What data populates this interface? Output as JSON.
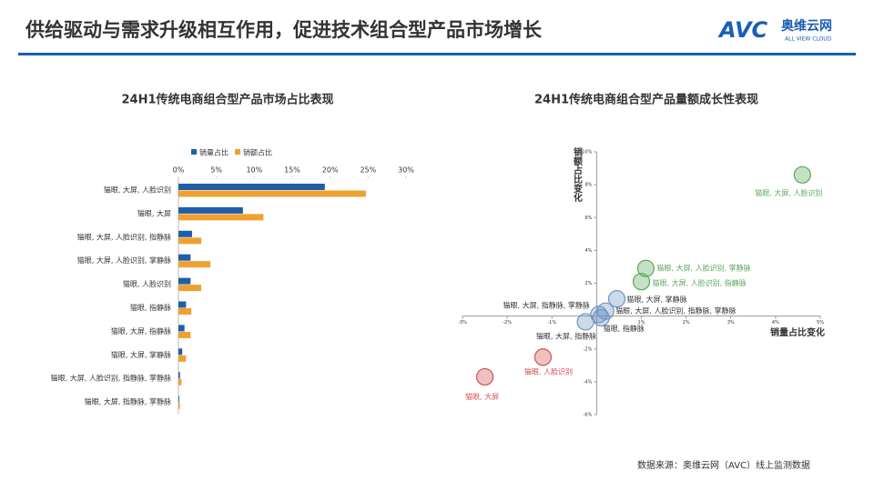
{
  "header": {
    "title": "供给驱动与需求升级相互作用，促进技术组合型产品市场增长",
    "logo_mark": "AVC",
    "logo_name": "奥维云网",
    "logo_sub": "ALL VIEW CLOUD"
  },
  "source": "数据来源：奥维云网（AVC）线上监测数据",
  "chart_data": [
    {
      "type": "bar",
      "orientation": "horizontal",
      "title": "24H1传统电商组合型产品市场占比表现",
      "categories": [
        "猫眼, 大屏, 人脸识别",
        "猫眼, 大屏",
        "猫眼, 大屏, 人脸识别, 指静脉",
        "猫眼, 大屏, 人脸识别, 掌静脉",
        "猫眼, 人脸识别",
        "猫眼, 指静脉",
        "猫眼, 大屏, 指静脉",
        "猫眼, 大屏, 掌静脉",
        "猫眼, 大屏, 人脸识别, 指静脉, 掌静脉",
        "猫眼, 大屏, 指静脉, 掌静脉"
      ],
      "series": [
        {
          "name": "销量占比",
          "color": "#1f5fa8",
          "values": [
            19.3,
            8.5,
            1.8,
            1.6,
            1.6,
            1.0,
            0.8,
            0.5,
            0.2,
            0.1
          ]
        },
        {
          "name": "销额占比",
          "color": "#f0a030",
          "values": [
            24.7,
            11.2,
            3.0,
            4.2,
            3.0,
            1.7,
            1.6,
            1.0,
            0.4,
            0.2
          ]
        }
      ],
      "xlim": [
        0,
        30
      ],
      "xticks": [
        {
          "value": 0,
          "label": "0%"
        },
        {
          "value": 5,
          "label": "5%"
        },
        {
          "value": 10,
          "label": "10%"
        },
        {
          "value": 15,
          "label": "15%"
        },
        {
          "value": 20,
          "label": "20%"
        },
        {
          "value": 25,
          "label": "25%"
        },
        {
          "value": 30,
          "label": "30%"
        }
      ],
      "legend": "top"
    },
    {
      "type": "scatter",
      "title": "24H1传统电商组合型产品量额成长性表现",
      "x_label": "销量占比变化",
      "y_label": "销额占比变化",
      "xlim": [
        -3,
        5
      ],
      "ylim": [
        -6,
        10
      ],
      "xticks": [
        {
          "value": -3,
          "label": "-3%"
        },
        {
          "value": -2,
          "label": "-2%"
        },
        {
          "value": -1,
          "label": "-1%"
        },
        {
          "value": 1,
          "label": "1%"
        },
        {
          "value": 2,
          "label": "2%"
        },
        {
          "value": 3,
          "label": "3%"
        },
        {
          "value": 4,
          "label": "4%"
        },
        {
          "value": 5,
          "label": "5%"
        }
      ],
      "yticks": [
        {
          "value": -6,
          "label": "-6%"
        },
        {
          "value": -4,
          "label": "-4%"
        },
        {
          "value": -2,
          "label": "-2%"
        },
        {
          "value": 2,
          "label": "2%"
        },
        {
          "value": 4,
          "label": "4%"
        },
        {
          "value": 6,
          "label": "6%"
        },
        {
          "value": 8,
          "label": "8%"
        },
        {
          "value": 10,
          "label": "10%"
        }
      ],
      "points": [
        {
          "label": "猫眼, 大屏, 人脸识别",
          "x": 4.6,
          "y": 8.6,
          "color": "#5aa85a"
        },
        {
          "label": "猫眼, 大屏, 人脸识别, 掌静脉",
          "x": 1.1,
          "y": 2.9,
          "color": "#5aa85a"
        },
        {
          "label": "猫眼, 大屏, 人脸识别, 指静脉",
          "x": 1.0,
          "y": 2.1,
          "color": "#5aa85a"
        },
        {
          "label": "猫眼, 大屏, 掌静脉",
          "x": 0.45,
          "y": 1.05,
          "color": "#6f95c4"
        },
        {
          "label": "猫眼, 大屏, 人脸识别, 指静脉, 掌静脉",
          "x": 0.2,
          "y": 0.3,
          "color": "#6f95c4"
        },
        {
          "label": "猫眼, 大屏, 指静脉, 掌静脉",
          "x": 0.05,
          "y": 0.1,
          "color": "#6f95c4"
        },
        {
          "label": "猫眼, 指静脉",
          "x": 0.1,
          "y": -0.1,
          "color": "#6f95c4"
        },
        {
          "label": "猫眼, 大屏, 指静脉",
          "x": -0.25,
          "y": -0.35,
          "color": "#6f95c4"
        },
        {
          "label": "猫眼, 人脸识别",
          "x": -1.2,
          "y": -2.5,
          "color": "#d25050"
        },
        {
          "label": "猫眼, 大屏",
          "x": -2.5,
          "y": -3.7,
          "color": "#d25050"
        }
      ]
    }
  ]
}
